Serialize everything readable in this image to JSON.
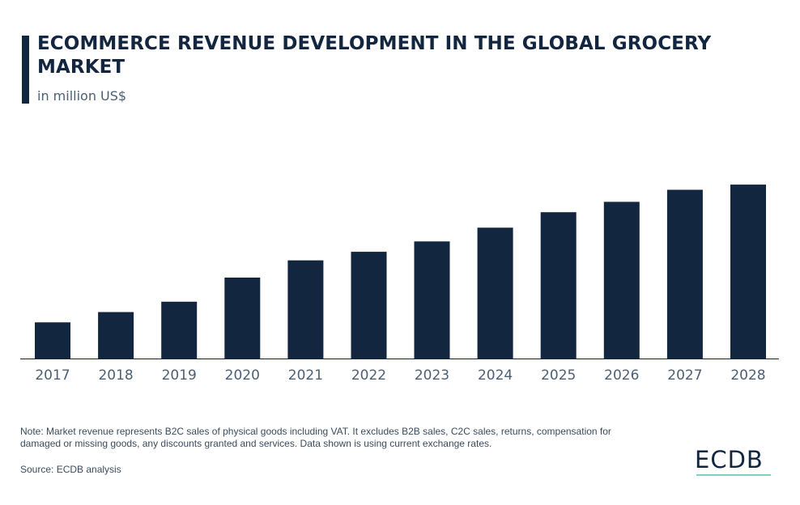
{
  "header": {
    "title": "ECOMMERCE REVENUE DEVELOPMENT IN THE GLOBAL GROCERY MARKET",
    "subtitle": "in million US$"
  },
  "footer": {
    "note": "Note: Market revenue represents B2C sales of physical goods including VAT. It excludes B2B sales, C2C sales, returns, compensation for damaged or missing goods, any discounts granted and services. Data shown is using current exchange rates.",
    "source": "Source: ECDB analysis",
    "logo": "ECDB"
  },
  "colors": {
    "bar": "#13263f",
    "axis": "#13263f",
    "tick_text": "#4c5f74",
    "logo_accent": "#7fd1c5"
  },
  "chart_data": {
    "type": "bar",
    "categories": [
      "2017",
      "2018",
      "2019",
      "2020",
      "2021",
      "2022",
      "2023",
      "2024",
      "2025",
      "2026",
      "2027",
      "2028"
    ],
    "values": [
      21,
      27,
      33,
      47,
      57,
      62,
      68,
      76,
      85,
      91,
      98,
      101
    ],
    "title": "ECOMMERCE REVENUE DEVELOPMENT IN THE GLOBAL GROCERY MARKET",
    "subtitle": "in million US$",
    "xlabel": "",
    "ylabel": "",
    "ylim": [
      0,
      110
    ],
    "grid": false,
    "legend": "none",
    "y_axis_visible": false
  }
}
